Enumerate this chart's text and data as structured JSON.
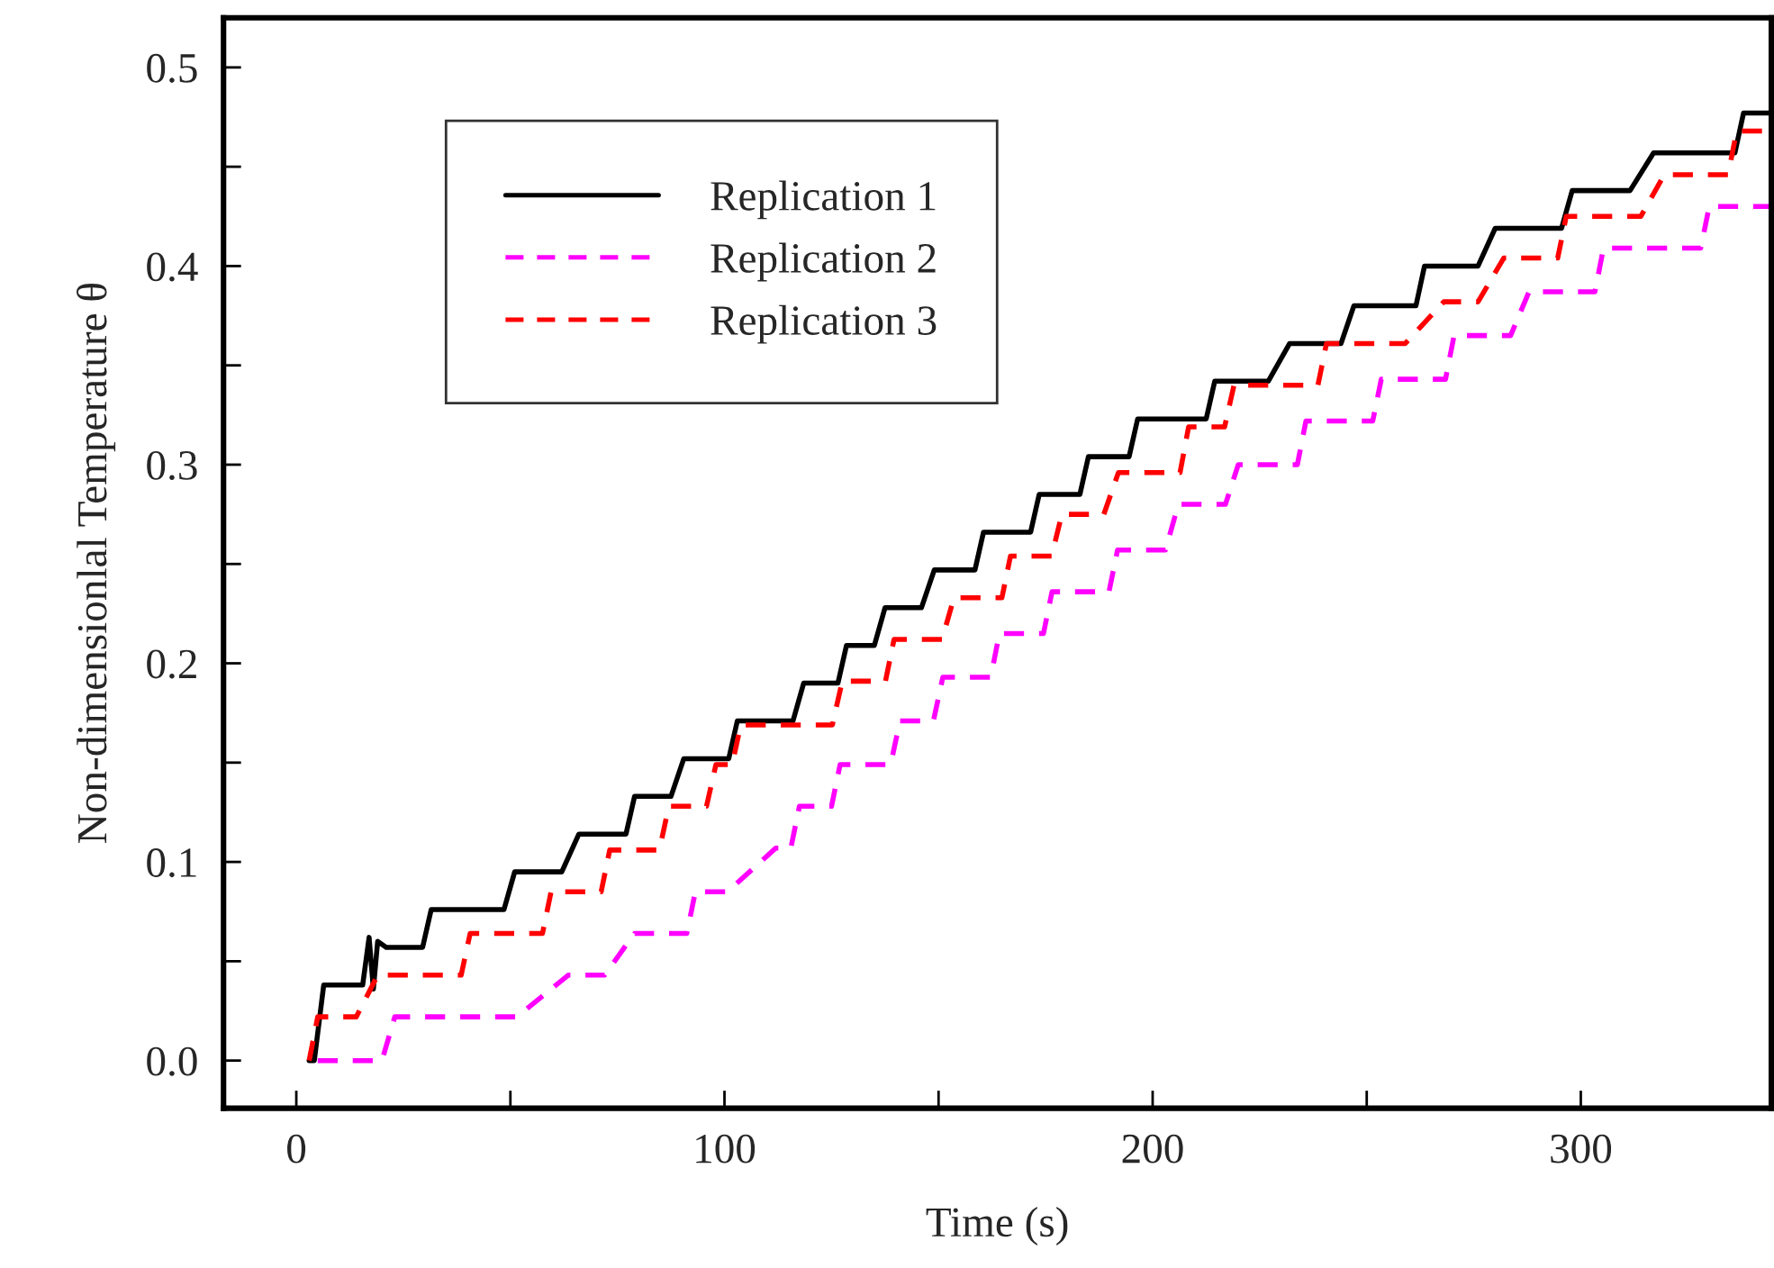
{
  "chart_data": {
    "type": "line",
    "xlabel": "Time (s)",
    "ylabel": "Non-dimensionlal Temperature θ",
    "xlim": [
      -17,
      344.5
    ],
    "ylim": [
      -0.024,
      0.525
    ],
    "xticks": [
      0,
      {
        "value": 50,
        "label": null
      },
      100,
      {
        "value": 150,
        "label": null
      },
      200,
      {
        "value": 250,
        "label": null
      },
      300
    ],
    "yticks": [
      {
        "value": 0,
        "label": "0.0"
      },
      {
        "value": 0.05,
        "label": null
      },
      0.1,
      {
        "value": 0.15,
        "label": null
      },
      0.2,
      {
        "value": 0.25,
        "label": null
      },
      0.3,
      {
        "value": 0.35,
        "label": null
      },
      0.4,
      {
        "value": 0.45,
        "label": null
      },
      0.5
    ],
    "grid": false,
    "legend": "top left",
    "marker": "none",
    "series": [
      {
        "name": "Replication 1",
        "color": "#000000",
        "line_style": "solid",
        "x": [
          3,
          4.2,
          6.4,
          15.5,
          17,
          18,
          19,
          21,
          29.5,
          31.5,
          48.5,
          51,
          62,
          66,
          77,
          79,
          87.5,
          90.5,
          101,
          103,
          116,
          118.5,
          126.5,
          128.5,
          135,
          137.5,
          146,
          149,
          158.5,
          160.5,
          171.5,
          173.5,
          183,
          185,
          194.5,
          196.5,
          212.5,
          214.5,
          227,
          232,
          244,
          247,
          261.5,
          263.5,
          276,
          280,
          295.5,
          298,
          311.5,
          317,
          336,
          338,
          344.5
        ],
        "values": [
          0,
          0,
          0.038,
          0.038,
          0.062,
          0.036,
          0.06,
          0.057,
          0.057,
          0.076,
          0.076,
          0.095,
          0.095,
          0.114,
          0.114,
          0.133,
          0.133,
          0.152,
          0.152,
          0.171,
          0.171,
          0.19,
          0.19,
          0.209,
          0.209,
          0.228,
          0.228,
          0.247,
          0.247,
          0.266,
          0.266,
          0.285,
          0.285,
          0.304,
          0.304,
          0.323,
          0.323,
          0.342,
          0.342,
          0.361,
          0.361,
          0.38,
          0.38,
          0.4,
          0.4,
          0.419,
          0.419,
          0.438,
          0.438,
          0.457,
          0.457,
          0.477,
          0.477
        ]
      },
      {
        "name": "Replication 2",
        "color": "#ff00ff",
        "line_style": "dashed",
        "x": [
          5,
          20,
          23,
          51.5,
          63.5,
          72,
          79,
          91.2,
          93.2,
          100.7,
          112,
          115.5,
          117.5,
          125,
          127,
          138.8,
          141,
          148.8,
          151,
          162.2,
          164.2,
          174.5,
          176.5,
          189.8,
          191.8,
          203,
          206,
          217,
          220,
          233.8,
          235.8,
          251.4,
          253.4,
          268.4,
          270.4,
          283.6,
          287.9,
          303.3,
          305.3,
          328,
          330,
          344.5
        ],
        "values": [
          0,
          0,
          0.022,
          0.022,
          0.043,
          0.043,
          0.064,
          0.064,
          0.085,
          0.085,
          0.107,
          0.107,
          0.128,
          0.128,
          0.149,
          0.149,
          0.171,
          0.171,
          0.193,
          0.193,
          0.215,
          0.215,
          0.236,
          0.236,
          0.257,
          0.257,
          0.28,
          0.28,
          0.3,
          0.3,
          0.322,
          0.322,
          0.343,
          0.343,
          0.365,
          0.365,
          0.387,
          0.387,
          0.409,
          0.409,
          0.43,
          0.43
        ]
      },
      {
        "name": "Replication 3",
        "color": "#ff0000",
        "line_style": "dashed",
        "x": [
          3,
          5,
          14,
          19,
          38.5,
          40.6,
          57.5,
          59.5,
          71.2,
          73.2,
          84.8,
          87,
          95.8,
          98,
          101.8,
          103.8,
          125.2,
          127.5,
          137.6,
          139.6,
          150.8,
          153.6,
          164.8,
          166.8,
          176.4,
          178.8,
          188.6,
          192,
          206.4,
          208.4,
          216.8,
          219,
          238.6,
          240.6,
          259,
          268,
          276,
          282,
          294.6,
          296.6,
          314,
          319.5,
          334.4,
          336.4,
          344.5
        ],
        "values": [
          0,
          0.022,
          0.022,
          0.043,
          0.043,
          0.064,
          0.064,
          0.085,
          0.085,
          0.106,
          0.106,
          0.128,
          0.128,
          0.149,
          0.149,
          0.169,
          0.169,
          0.191,
          0.191,
          0.212,
          0.212,
          0.233,
          0.233,
          0.254,
          0.254,
          0.275,
          0.275,
          0.296,
          0.296,
          0.319,
          0.319,
          0.34,
          0.34,
          0.361,
          0.361,
          0.382,
          0.382,
          0.404,
          0.404,
          0.425,
          0.425,
          0.446,
          0.446,
          0.468,
          0.468
        ]
      }
    ]
  }
}
